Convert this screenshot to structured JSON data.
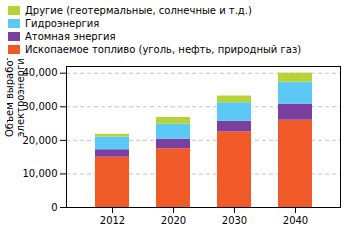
{
  "chart_data": {
    "type": "bar",
    "stacked": true,
    "categories": [
      "2012",
      "2020",
      "2030",
      "2040"
    ],
    "series": [
      {
        "name": "Ископаемое топливо (уголь, нефть, природный газ)",
        "color": "#f05a28",
        "values": [
          15000,
          17500,
          22500,
          26000
        ]
      },
      {
        "name": "Атомная энергия",
        "color": "#7b3fa0",
        "values": [
          2200,
          2800,
          3200,
          4800
        ]
      },
      {
        "name": "Гидроэнергия",
        "color": "#5bc8f5",
        "values": [
          3800,
          4500,
          5500,
          6500
        ]
      },
      {
        "name": "Другие (геотермальные, солнечные и т.д.)",
        "color": "#b5d334",
        "values": [
          800,
          2000,
          2000,
          2700
        ]
      }
    ],
    "ylabel": "Объем выработки\nэлектроэнергии, TWh",
    "ylim": [
      0,
      42000
    ],
    "yticks": [
      0,
      {
        "value": 10000,
        "label": "10,000"
      },
      {
        "value": 20000,
        "label": "20,000"
      },
      {
        "value": 30000,
        "label": "30,000"
      },
      {
        "value": 40000,
        "label": "40,000"
      }
    ],
    "grid": true,
    "legend": "upper left"
  }
}
